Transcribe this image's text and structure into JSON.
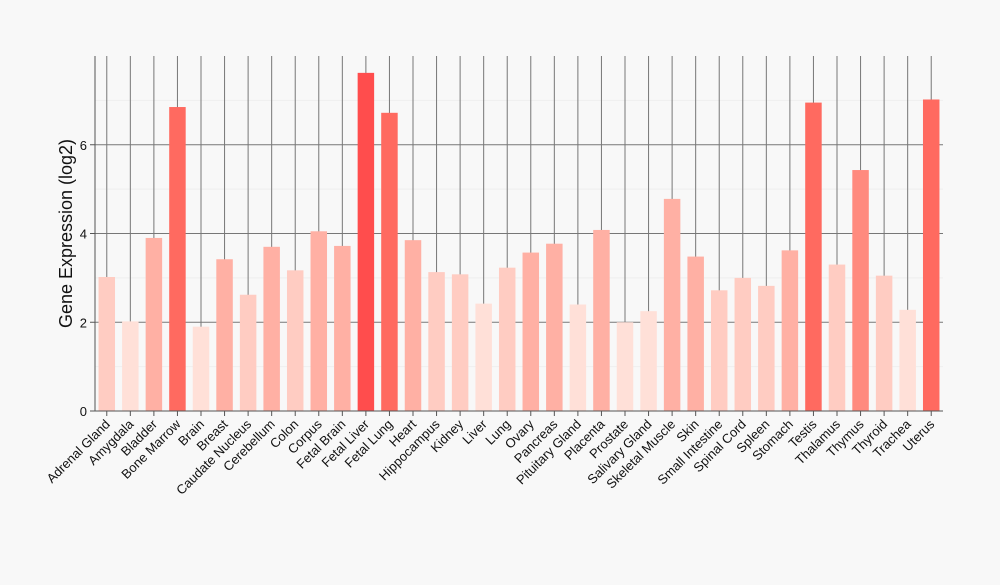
{
  "chart_data": {
    "type": "bar",
    "title": "",
    "xlabel": "",
    "ylabel": "Gene Expression (log2)",
    "ylim": [
      0,
      8
    ],
    "yticks": [
      0,
      2,
      4,
      6
    ],
    "grid": true,
    "legend": "none",
    "categories": [
      "Adrenal Gland",
      "Amygdala",
      "Bladder",
      "Bone Marrow",
      "Brain",
      "Breast",
      "Caudate Nucleus",
      "Cerebellum",
      "Colon",
      "Corpus",
      "Fetal Brain",
      "Fetal Liver",
      "Fetal Lung",
      "Heart",
      "Hippocampus",
      "Kidney",
      "Liver",
      "Lung",
      "Ovary",
      "Pancreas",
      "Pituitary Gland",
      "Placenta",
      "Prostate",
      "Salivary Gland",
      "Skeletal Muscle",
      "Skin",
      "Small Intestine",
      "Spinal Cord",
      "Spleen",
      "Stomach",
      "Testis",
      "Thalamus",
      "Thymus",
      "Thyroid",
      "Trachea",
      "Uterus"
    ],
    "values": [
      3.02,
      2.02,
      3.9,
      6.85,
      1.9,
      3.42,
      2.62,
      3.7,
      3.17,
      4.05,
      3.72,
      7.62,
      6.72,
      3.85,
      3.13,
      3.08,
      2.42,
      3.23,
      3.57,
      3.77,
      2.4,
      4.08,
      2.0,
      2.25,
      4.78,
      3.48,
      2.72,
      3.0,
      2.82,
      3.62,
      6.95,
      3.3,
      5.43,
      3.05,
      2.28,
      7.02
    ],
    "colors": {
      "lowest": "#ffe0d8",
      "low": "#ffccc2",
      "mid": "#ffb0a4",
      "high": "#ff8a7e",
      "higher": "#ff6a60",
      "highest": "#ff4d4d",
      "grid": "#e6e6e6",
      "axis": "#555555"
    }
  }
}
